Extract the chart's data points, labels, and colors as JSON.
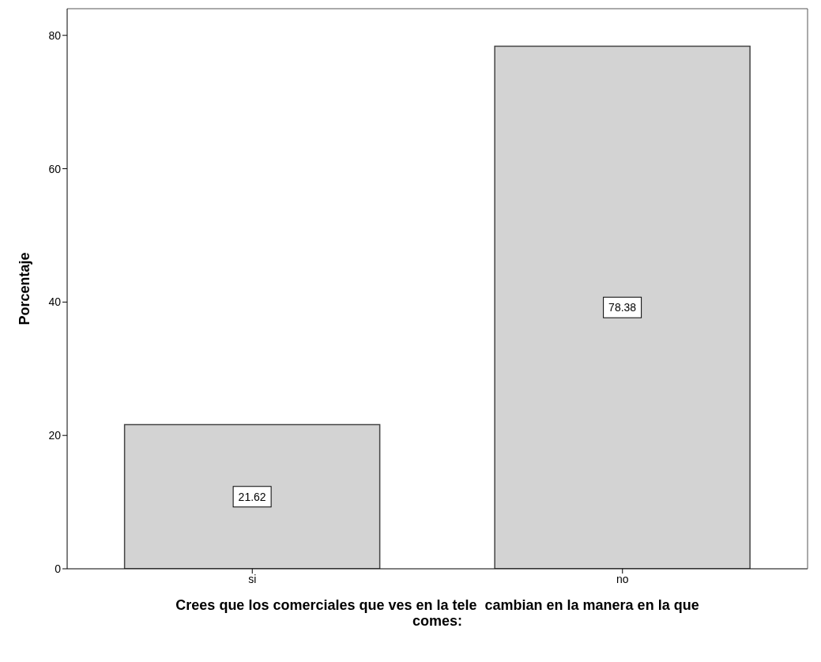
{
  "chart_data": {
    "type": "bar",
    "xlabel": "Crees que los comerciales que ves en la tele  cambian en la manera en la que comes:",
    "ylabel": "Porcentaje",
    "categories": [
      "si",
      "no"
    ],
    "values": [
      21.62,
      78.38
    ],
    "color": "#d3d3d3",
    "ylim": [
      0,
      84
    ],
    "yticks": [
      0,
      20,
      40,
      60,
      80
    ],
    "data_labels": true,
    "grid": false
  }
}
